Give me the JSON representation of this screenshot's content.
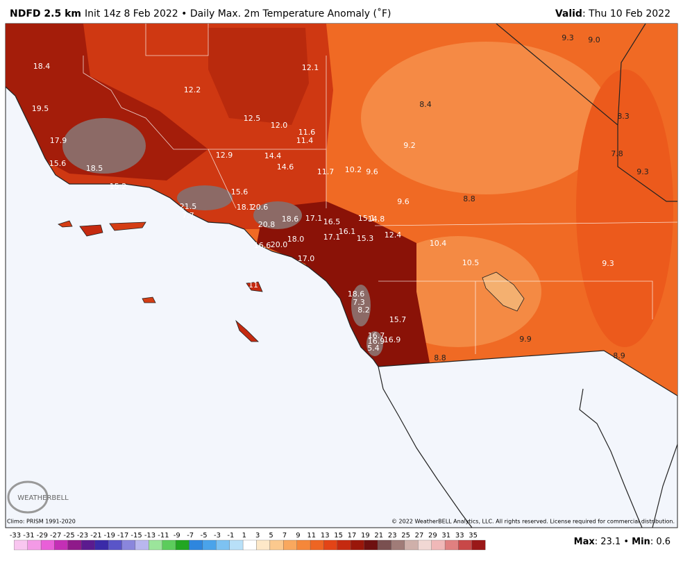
{
  "header": {
    "title": "NDFD 2.5 km",
    "subtitle": "Init 14z 8 Feb 2022 • Daily Max. 2m Temperature Anomaly (˚F)",
    "valid_label": "Valid",
    "valid_date": ": Thu 10 Feb 2022"
  },
  "map_labels": [
    "18.4",
    "12.1",
    "12.2",
    "19.5",
    "8.4",
    "12.5",
    "12.0",
    "11.6",
    "8.3",
    "17.9",
    "11.4",
    "9.2",
    "12.9",
    "14.4",
    "7.8",
    "9.3",
    "9.0",
    "15.6",
    "14.6",
    "18.5",
    "11.7",
    "10.2",
    "9.6",
    "9.3",
    "15.2",
    "15.6",
    "9.6",
    "8.8",
    "21.5",
    "18.1",
    "20.6",
    "7.7",
    "18.6",
    "17.1",
    "16.5",
    "15.1",
    "14.8",
    "20.8",
    "16.1",
    "12.4",
    "17.1",
    "15.3",
    "18.0",
    "10.4",
    "16.6",
    "20.0",
    "17.0",
    "10.5",
    "9.3",
    "11",
    "18.6",
    "7.3",
    "8.2",
    "15.7",
    "16.7",
    "16.9",
    "16.9",
    "5.4",
    "9.9",
    "8.8",
    "8.9"
  ],
  "footer": {
    "climo": "Climo: PRISM 1991-2020",
    "copyright": "© 2022 WeatherBELL Analytics, LLC. All rights reserved. License required for commercial distribution.",
    "logo": "WEATHERBELL",
    "max_label": "Max",
    "max_value": ": 23.1 • ",
    "min_label": "Min",
    "min_value": ": 0.6"
  },
  "colorbar": {
    "ticks": [
      -33,
      -31,
      -29,
      -27,
      -25,
      -23,
      -21,
      -19,
      -17,
      -15,
      -13,
      -11,
      -9,
      -7,
      -5,
      -3,
      -1,
      1,
      3,
      5,
      7,
      9,
      11,
      13,
      15,
      17,
      19,
      21,
      23,
      25,
      27,
      29,
      31,
      33,
      35
    ],
    "colors": [
      "#f9c6f0",
      "#f39ae6",
      "#e95fd8",
      "#c42fb5",
      "#8f1a8a",
      "#5b1b8f",
      "#3a2aa8",
      "#5a55c8",
      "#8a86dc",
      "#b9b7ee",
      "#9be59b",
      "#5ccc5c",
      "#22a622",
      "#2e86de",
      "#4aa3ea",
      "#7dc2f2",
      "#b8e0f8",
      "#ffffff",
      "#fde8c8",
      "#fbc98e",
      "#f9a85e",
      "#f5873a",
      "#ee6523",
      "#e34416",
      "#c52a10",
      "#9a170a",
      "#6e1010",
      "#7a5050",
      "#a07c78",
      "#cfb0aa",
      "#f1d8d4",
      "#f0b8b8",
      "#e08080",
      "#c84848",
      "#9a1818"
    ]
  }
}
